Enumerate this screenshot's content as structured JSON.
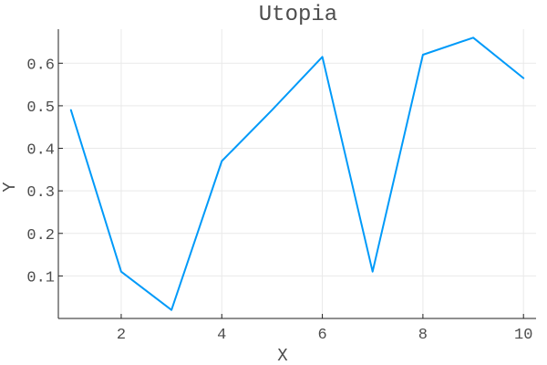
{
  "chart_data": {
    "type": "line",
    "title": "Utopia",
    "xlabel": "X",
    "ylabel": "Y",
    "xlim": [
      0.75,
      10.25
    ],
    "ylim": [
      0.0,
      0.68
    ],
    "xticks": [
      2,
      4,
      6,
      8,
      10
    ],
    "xtick_labels": [
      "2",
      "4",
      "6",
      "8",
      "10"
    ],
    "yticks": [
      0.1,
      0.2,
      0.3,
      0.4,
      0.5,
      0.6
    ],
    "ytick_labels": [
      "0.1",
      "0.2",
      "0.3",
      "0.4",
      "0.5",
      "0.6"
    ],
    "grid": true,
    "legend": "none",
    "series": [
      {
        "color": "#009af9",
        "x": [
          1,
          2,
          3,
          4,
          5,
          6,
          7,
          8,
          9,
          10
        ],
        "y": [
          0.49,
          0.11,
          0.02,
          0.37,
          0.49,
          0.615,
          0.11,
          0.62,
          0.66,
          0.565
        ]
      }
    ]
  }
}
